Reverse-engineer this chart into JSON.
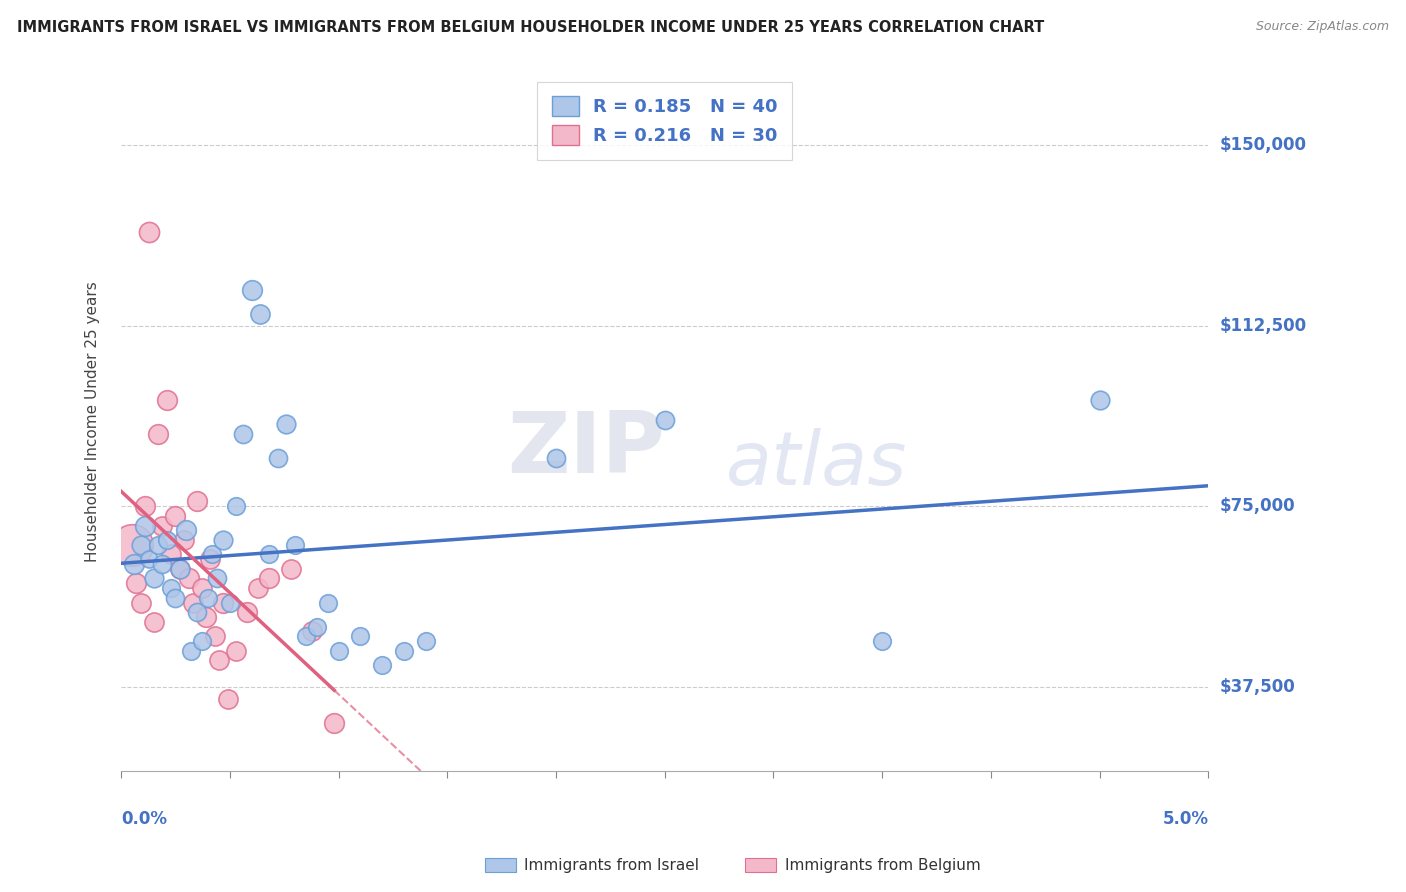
{
  "title": "IMMIGRANTS FROM ISRAEL VS IMMIGRANTS FROM BELGIUM HOUSEHOLDER INCOME UNDER 25 YEARS CORRELATION CHART",
  "source": "Source: ZipAtlas.com",
  "ylabel": "Householder Income Under 25 years",
  "xlim": [
    0.0,
    5.0
  ],
  "ylim": [
    20000,
    165000
  ],
  "yticks": [
    37500,
    75000,
    112500,
    150000
  ],
  "ytick_labels": [
    "$37,500",
    "$75,000",
    "$112,500",
    "$150,000"
  ],
  "R_israel": "0.185",
  "N_israel": "40",
  "R_belgium": "0.216",
  "N_belgium": "30",
  "legend_text_color": "#4472c4",
  "color_israel_fill": "#aec6e8",
  "color_israel_edge": "#6a9fd8",
  "color_israel_line": "#4472c4",
  "color_belgium_fill": "#f4b8cb",
  "color_belgium_edge": "#e07090",
  "color_belgium_line": "#e06080",
  "israel_points": [
    [
      0.06,
      63000,
      200
    ],
    [
      0.09,
      67000,
      180
    ],
    [
      0.11,
      71000,
      200
    ],
    [
      0.13,
      64000,
      150
    ],
    [
      0.15,
      60000,
      180
    ],
    [
      0.17,
      67000,
      160
    ],
    [
      0.19,
      63000,
      170
    ],
    [
      0.21,
      68000,
      160
    ],
    [
      0.23,
      58000,
      160
    ],
    [
      0.25,
      56000,
      170
    ],
    [
      0.27,
      62000,
      180
    ],
    [
      0.3,
      70000,
      200
    ],
    [
      0.32,
      45000,
      160
    ],
    [
      0.35,
      53000,
      170
    ],
    [
      0.37,
      47000,
      160
    ],
    [
      0.4,
      56000,
      160
    ],
    [
      0.42,
      65000,
      160
    ],
    [
      0.44,
      60000,
      170
    ],
    [
      0.47,
      68000,
      180
    ],
    [
      0.5,
      55000,
      160
    ],
    [
      0.53,
      75000,
      160
    ],
    [
      0.56,
      90000,
      170
    ],
    [
      0.6,
      120000,
      200
    ],
    [
      0.64,
      115000,
      190
    ],
    [
      0.68,
      65000,
      160
    ],
    [
      0.72,
      85000,
      170
    ],
    [
      0.76,
      92000,
      180
    ],
    [
      0.8,
      67000,
      160
    ],
    [
      0.85,
      48000,
      160
    ],
    [
      0.9,
      50000,
      160
    ],
    [
      0.95,
      55000,
      160
    ],
    [
      1.0,
      45000,
      160
    ],
    [
      1.1,
      48000,
      160
    ],
    [
      1.2,
      42000,
      160
    ],
    [
      1.3,
      45000,
      160
    ],
    [
      1.4,
      47000,
      160
    ],
    [
      2.0,
      85000,
      170
    ],
    [
      2.5,
      93000,
      170
    ],
    [
      3.5,
      47000,
      160
    ],
    [
      4.5,
      97000,
      180
    ]
  ],
  "belgium_points": [
    [
      0.05,
      67000,
      900
    ],
    [
      0.07,
      59000,
      200
    ],
    [
      0.09,
      55000,
      190
    ],
    [
      0.11,
      75000,
      200
    ],
    [
      0.13,
      132000,
      210
    ],
    [
      0.15,
      51000,
      190
    ],
    [
      0.17,
      90000,
      200
    ],
    [
      0.19,
      71000,
      190
    ],
    [
      0.21,
      97000,
      200
    ],
    [
      0.23,
      65000,
      190
    ],
    [
      0.25,
      73000,
      200
    ],
    [
      0.27,
      62000,
      190
    ],
    [
      0.29,
      68000,
      190
    ],
    [
      0.31,
      60000,
      200
    ],
    [
      0.33,
      55000,
      190
    ],
    [
      0.35,
      76000,
      200
    ],
    [
      0.37,
      58000,
      190
    ],
    [
      0.39,
      52000,
      200
    ],
    [
      0.41,
      64000,
      190
    ],
    [
      0.43,
      48000,
      190
    ],
    [
      0.45,
      43000,
      190
    ],
    [
      0.47,
      55000,
      200
    ],
    [
      0.49,
      35000,
      190
    ],
    [
      0.53,
      45000,
      190
    ],
    [
      0.58,
      53000,
      200
    ],
    [
      0.63,
      58000,
      190
    ],
    [
      0.68,
      60000,
      200
    ],
    [
      0.78,
      62000,
      190
    ],
    [
      0.88,
      49000,
      190
    ],
    [
      0.98,
      30000,
      200
    ]
  ]
}
